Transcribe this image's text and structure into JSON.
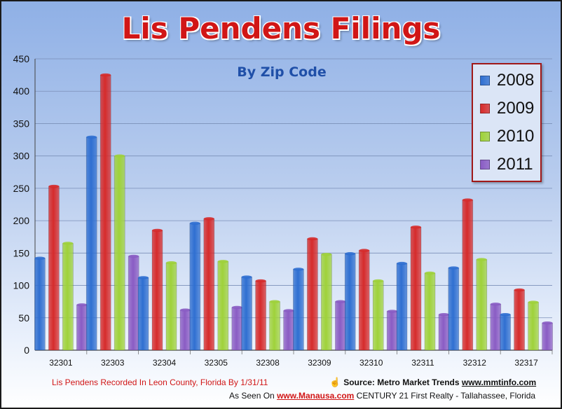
{
  "chart_data": {
    "type": "bar",
    "title": "Lis Pendens Filings",
    "subtitle": "By Zip Code",
    "categories": [
      "32301",
      "32303",
      "32304",
      "32305",
      "32308",
      "32309",
      "32310",
      "32311",
      "32312",
      "32317"
    ],
    "series": [
      {
        "name": "2008",
        "color": "#2f6fd1",
        "values": [
          142,
          329,
          112,
          196,
          113,
          125,
          149,
          134,
          127,
          55
        ]
      },
      {
        "name": "2009",
        "color": "#d62b2b",
        "values": [
          253,
          425,
          185,
          203,
          107,
          172,
          154,
          190,
          232,
          93
        ]
      },
      {
        "name": "2010",
        "color": "#9fd23a",
        "values": [
          165,
          300,
          135,
          137,
          75,
          148,
          107,
          119,
          140,
          74
        ]
      },
      {
        "name": "2011",
        "color": "#8a5cc4",
        "values": [
          70,
          145,
          62,
          66,
          61,
          75,
          60,
          55,
          71,
          42
        ]
      }
    ],
    "ylim": [
      0,
      450
    ],
    "yticks": [
      0,
      50,
      100,
      150,
      200,
      250,
      300,
      350,
      400,
      450
    ],
    "grid": true,
    "legend_position": "top-right"
  },
  "footer": {
    "left_note": "Lis Pendens Recorded In Leon County, Florida By 1/31/11",
    "source_prefix": "Source: Metro Market Trends",
    "source_link": "www.mmtinfo.com",
    "seen_prefix": "As Seen On",
    "seen_link": "www.Manausa.com",
    "seen_suffix": "CENTURY 21 First Realty - Tallahassee, Florida"
  }
}
